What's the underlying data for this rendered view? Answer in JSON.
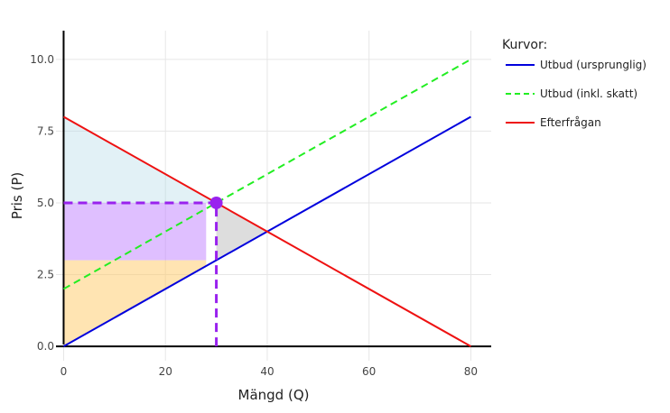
{
  "chart_data": {
    "type": "line",
    "xlabel": "Mängd (Q)",
    "ylabel": "Pris (P)",
    "xlim": [
      -1.5,
      84
    ],
    "ylim": [
      -0.5,
      11
    ],
    "x_ticks": [
      0,
      20,
      40,
      60,
      80
    ],
    "y_ticks": [
      0,
      2.5,
      5,
      7.5,
      10
    ],
    "x_tick_labels": [
      "0",
      "20",
      "40",
      "60",
      "80"
    ],
    "y_tick_labels": [
      "0.0",
      "2.5",
      "5.0",
      "7.5",
      "10.0"
    ],
    "grid": true,
    "legend": {
      "title": "Kurvor:",
      "position": "right"
    },
    "series": [
      {
        "name": "Utbud (ursprunglig)",
        "color": "#0000dd",
        "dash": "solid",
        "x": [
          0,
          80
        ],
        "y": [
          0,
          8
        ]
      },
      {
        "name": "Utbud (inkl. skatt)",
        "color": "#22ee22",
        "dash": "dashed",
        "x": [
          0,
          80
        ],
        "y": [
          2,
          10
        ]
      },
      {
        "name": "Efterfrågan",
        "color": "#ee1111",
        "dash": "solid",
        "x": [
          0,
          80
        ],
        "y": [
          8,
          0
        ]
      }
    ],
    "shaded_regions": [
      {
        "color": "#add8e6",
        "opacity": 0.35,
        "points": [
          [
            0,
            8
          ],
          [
            0,
            5
          ],
          [
            30,
            5
          ]
        ]
      },
      {
        "color": "#bf7fff",
        "opacity": 0.5,
        "points": [
          [
            0,
            5
          ],
          [
            28,
            5
          ],
          [
            28,
            3
          ],
          [
            0,
            3
          ]
        ]
      },
      {
        "color": "#ffc966",
        "opacity": 0.5,
        "points": [
          [
            0,
            3
          ],
          [
            28,
            3
          ],
          [
            28,
            2.8
          ],
          [
            0,
            0
          ]
        ]
      },
      {
        "color": "#bbbbbb",
        "opacity": 0.5,
        "points": [
          [
            30,
            5
          ],
          [
            30,
            3
          ],
          [
            40,
            4
          ]
        ]
      }
    ],
    "equilibrium_marker": {
      "x": 30,
      "y": 5,
      "color": "#9922ee"
    },
    "reference_lines": [
      {
        "color": "#9922ee",
        "dash": "dashed",
        "x": [
          0,
          30
        ],
        "y": [
          5,
          5
        ]
      },
      {
        "color": "#9922ee",
        "dash": "dashed",
        "x": [
          30,
          30
        ],
        "y": [
          0,
          5
        ]
      }
    ]
  }
}
